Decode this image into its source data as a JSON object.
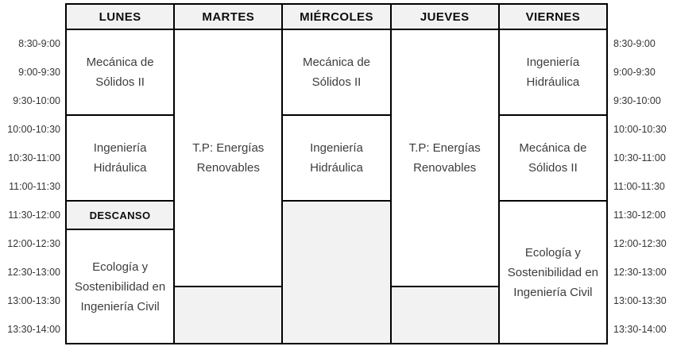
{
  "colors": {
    "background": "#ffffff",
    "border": "#000000",
    "shaded_bg": "#f2f2f2",
    "course_text": "#3d3d3d",
    "header_text": "#0d0d0d"
  },
  "time_slots": [
    "8:30-9:00",
    "9:00-9:30",
    "9:30-10:00",
    "10:00-10:30",
    "10:30-11:00",
    "11:00-11:30",
    "11:30-12:00",
    "12:00-12:30",
    "12:30-13:00",
    "13:00-13:30",
    "13:30-14:00"
  ],
  "days": [
    {
      "header": "LUNES",
      "blocks": [
        {
          "text": "Mecánica de Sólidos II",
          "time_range": "8:30-10:00",
          "slots": 3,
          "shaded": false
        },
        {
          "text": "Ingeniería Hidráulica",
          "time_range": "10:00-11:30",
          "slots": 3,
          "shaded": false
        },
        {
          "text": "DESCANSO",
          "time_range": "11:30-12:00",
          "slots": 1,
          "shaded": true
        },
        {
          "text": "Ecología y Sostenibilidad en Ingeniería Civil",
          "time_range": "12:00-14:00",
          "slots": 4,
          "shaded": false
        }
      ]
    },
    {
      "header": "MARTES",
      "blocks": [
        {
          "text": "T.P: Energías Renovables",
          "time_range": "8:30-13:00",
          "slots": 9,
          "shaded": false
        },
        {
          "text": "",
          "time_range": "13:00-14:00",
          "slots": 2,
          "shaded": true
        }
      ]
    },
    {
      "header": "MIÉRCOLES",
      "blocks": [
        {
          "text": "Mecánica de Sólidos II",
          "time_range": "8:30-10:00",
          "slots": 3,
          "shaded": false
        },
        {
          "text": "Ingeniería Hidráulica",
          "time_range": "10:00-11:30",
          "slots": 3,
          "shaded": false
        },
        {
          "text": "",
          "time_range": "11:30-14:00",
          "slots": 5,
          "shaded": true
        }
      ]
    },
    {
      "header": "JUEVES",
      "blocks": [
        {
          "text": "T.P: Energías Renovables",
          "time_range": "8:30-13:00",
          "slots": 9,
          "shaded": false
        },
        {
          "text": "",
          "time_range": "13:00-14:00",
          "slots": 2,
          "shaded": true
        }
      ]
    },
    {
      "header": "VIERNES",
      "blocks": [
        {
          "text": "Ingeniería Hidráulica",
          "time_range": "8:30-10:00",
          "slots": 3,
          "shaded": false
        },
        {
          "text": "Mecánica de Sólidos II",
          "time_range": "10:00-11:30",
          "slots": 3,
          "shaded": false
        },
        {
          "text": "Ecología y Sostenibilidad en Ingeniería Civil",
          "time_range": "11:30-14:00",
          "slots": 5,
          "shaded": false
        }
      ]
    }
  ]
}
